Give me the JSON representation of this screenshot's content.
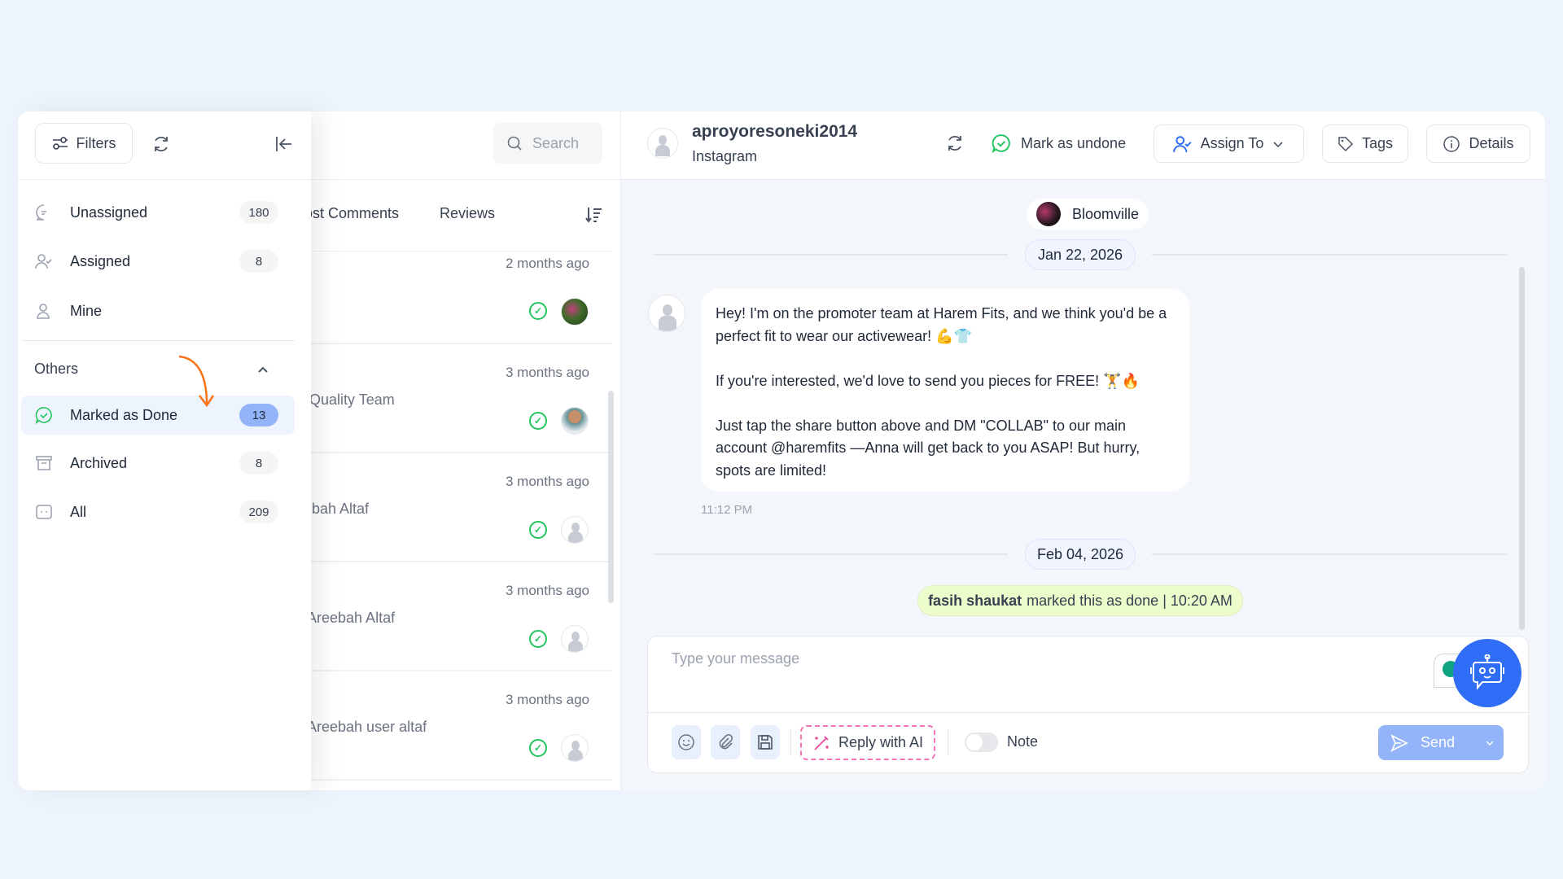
{
  "sidebar": {
    "filters_label": "Filters",
    "items": [
      {
        "label": "Unassigned",
        "count": "180",
        "icon": "chat-question-icon"
      },
      {
        "label": "Assigned",
        "count": "8",
        "icon": "user-check-icon"
      },
      {
        "label": "Mine",
        "icon": "user-icon"
      }
    ],
    "others_label": "Others",
    "others_items": [
      {
        "label": "Marked as Done",
        "count": "13",
        "icon": "check-chat-icon",
        "active": true
      },
      {
        "label": "Archived",
        "count": "8",
        "icon": "archive-icon"
      },
      {
        "label": "All",
        "count": "209",
        "icon": "chat-icon"
      }
    ]
  },
  "list": {
    "search_placeholder": "Search",
    "tabs": [
      "Post Comments",
      "Reviews"
    ],
    "items": [
      {
        "time": "2 months ago",
        "name": ""
      },
      {
        "time": "3 months ago",
        "name": "Quality Team"
      },
      {
        "time": "3 months ago",
        "name": "bah Altaf"
      },
      {
        "time": "3 months ago",
        "name": "Areebah Altaf"
      },
      {
        "time": "3 months ago",
        "name": "Areebah user altaf"
      }
    ]
  },
  "chat": {
    "username": "aproyoresoneki2014",
    "channel": "Instagram",
    "mark_undone_label": "Mark as undone",
    "assign_label": "Assign To",
    "tags_label": "Tags",
    "details_label": "Details",
    "page_name": "Bloomville",
    "date1": "Jan 22, 2026",
    "message_lines": [
      "Hey! I'm on the promoter team at Harem Fits, and we think you'd be a",
      "perfect fit to wear our activewear! 💪👕",
      "",
      "If you're interested, we'd love to send you  pieces for FREE! 🏋️🔥",
      "",
      "Just tap the share button above and DM \"COLLAB\" to our main",
      "account @haremfits —Anna will get back to you ASAP! But hurry,",
      "spots are limited!"
    ],
    "message_time": "11:12 PM",
    "date2": "Feb 04, 2026",
    "done_user": "fasih shaukat",
    "done_text": "marked this as done | 10:20 AM",
    "composer_placeholder": "Type your message",
    "reply_ai_label": "Reply with AI",
    "note_label": "Note",
    "send_label": "Send"
  },
  "colors": {
    "accent": "#2f6df6",
    "done_bg": "#ecfccb",
    "active_badge": "#93b4f8",
    "arrow": "#f97316",
    "ai_pink": "#ec4899"
  }
}
